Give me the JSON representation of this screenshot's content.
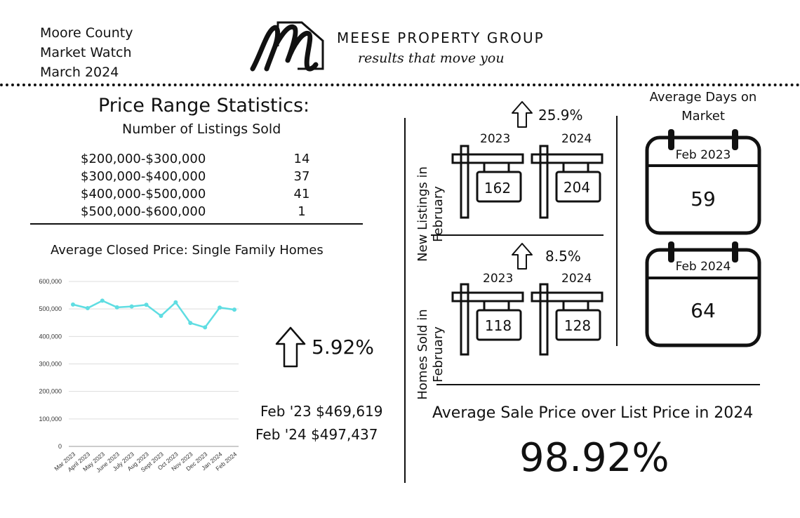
{
  "header": {
    "line1": "Moore County",
    "line2": "Market Watch",
    "line3": "March 2024",
    "brand_name": "MEESE PROPERTY GROUP",
    "tagline": "results that move you",
    "logo_letter": "M"
  },
  "price_range": {
    "title": "Price Range Statistics:",
    "subtitle": "Number of Listings Sold",
    "rows": [
      {
        "range": "$200,000-$300,000",
        "count": "14"
      },
      {
        "range": "$300,000-$400,000",
        "count": "37"
      },
      {
        "range": "$400,000-$500,000",
        "count": "41"
      },
      {
        "range": "$500,000-$600,000",
        "count": "1"
      }
    ]
  },
  "closed_price": {
    "title": "Average Closed Price: Single Family Homes",
    "change": "5.92%",
    "feb23": "Feb '23 $469,619",
    "feb24": "Feb '24 $497,437"
  },
  "chart_data": {
    "type": "line",
    "categories": [
      "Mar 2023",
      "April 2023",
      "May 2023",
      "June 2023",
      "July 2023",
      "Aug 2023",
      "Sept 2023",
      "Oct 2023",
      "Nov 2023",
      "Dec 2023",
      "Jan 2024",
      "Feb 2024"
    ],
    "values": [
      516000,
      503000,
      530000,
      506000,
      509000,
      515000,
      475000,
      524000,
      449000,
      433000,
      505000,
      497437
    ],
    "yticks": [
      "600,000",
      "500,000",
      "400,000",
      "300,000",
      "200,000",
      "100,000",
      "0"
    ],
    "ylim": [
      0,
      600000
    ],
    "color": "#5fdde2"
  },
  "new_listings": {
    "label": "New Listings in February",
    "change": "25.9%",
    "year1": "2023",
    "value1": "162",
    "year2": "2024",
    "value2": "204"
  },
  "homes_sold": {
    "label": "Homes Sold in February",
    "change": "8.5%",
    "year1": "2023",
    "value1": "118",
    "year2": "2024",
    "value2": "128"
  },
  "days_on_market": {
    "title": "Average Days on Market",
    "cal1_date": "Feb 2023",
    "cal1_value": "59",
    "cal2_date": "Feb 2024",
    "cal2_value": "64"
  },
  "sale_vs_list": {
    "title": "Average Sale Price over List Price in 2024",
    "value": "98.92%"
  }
}
